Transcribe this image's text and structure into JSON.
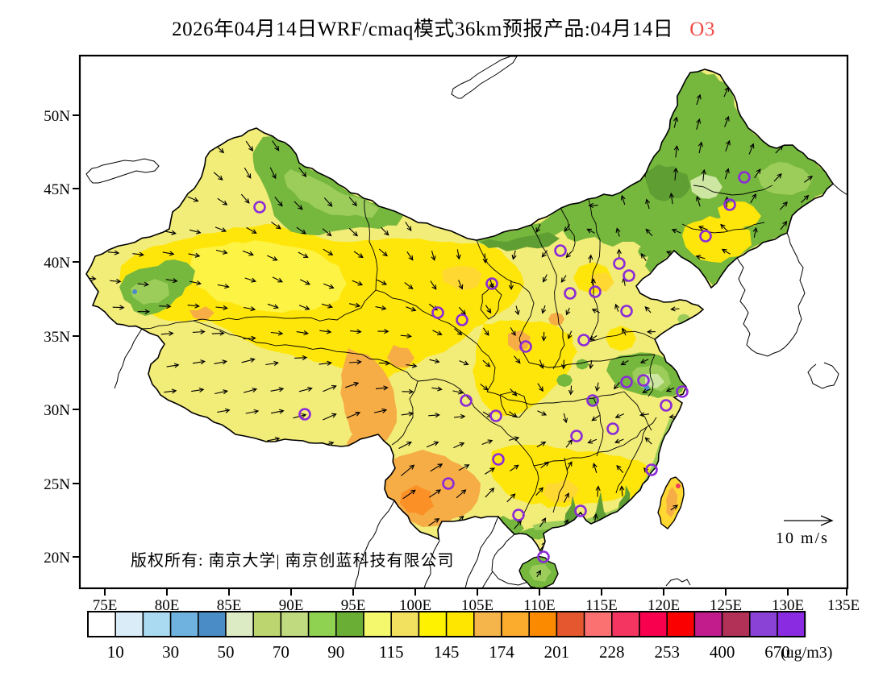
{
  "title": {
    "main": "2026年04月14日WRF/cmaq模式36km预报产品:04月14日",
    "pollutant": "O3",
    "pollutant_color": "#f04845"
  },
  "axes": {
    "lat_labels": [
      "50N",
      "45N",
      "40N",
      "35N",
      "30N",
      "25N",
      "20N"
    ],
    "lon_labels": [
      "75E",
      "80E",
      "85E",
      "90E",
      "95E",
      "100E",
      "105E",
      "110E",
      "115E",
      "120E",
      "125E",
      "130E",
      "135E"
    ]
  },
  "map": {
    "copyright": "版权所有: 南京大学| 南京创蓝科技有限公司",
    "wind_scale_label": "10 m/s",
    "marker_color": "#8b2bd8",
    "lake_color": "#4a8cc5"
  },
  "map_palette": {
    "base": "#f2ec78",
    "yellow": "#ffe60a",
    "lemon": "#fdf344",
    "gold": "#ffd832",
    "green_mid": "#76b73d",
    "green_light": "#9ccd5b",
    "green_pale": "#cde6a2",
    "green_dark": "#5f9e33",
    "orange": "#f6ad46",
    "orange_deep": "#fb9026",
    "red_orange": "#e8542e",
    "red": "#f23b5c"
  },
  "colorbar": {
    "units": "(ug/m3)",
    "tick_labels": [
      "10",
      "30",
      "50",
      "70",
      "90",
      "115",
      "145",
      "174",
      "201",
      "228",
      "253",
      "400",
      "670"
    ],
    "colors": [
      "#ffffff",
      "#d9ecf8",
      "#a9daf2",
      "#70b2df",
      "#4a8cc5",
      "#dcebc3",
      "#bcd56e",
      "#c0da7f",
      "#8fd150",
      "#6bae35",
      "#f4f86d",
      "#f2e05f",
      "#fef200",
      "#ffe600",
      "#f5b54b",
      "#fbac2d",
      "#fb8a00",
      "#e5572f",
      "#fb7070",
      "#f43561",
      "#f8004e",
      "#fb0000",
      "#c11b8c",
      "#b13157",
      "#8a42d6",
      "#8a2be2"
    ]
  }
}
